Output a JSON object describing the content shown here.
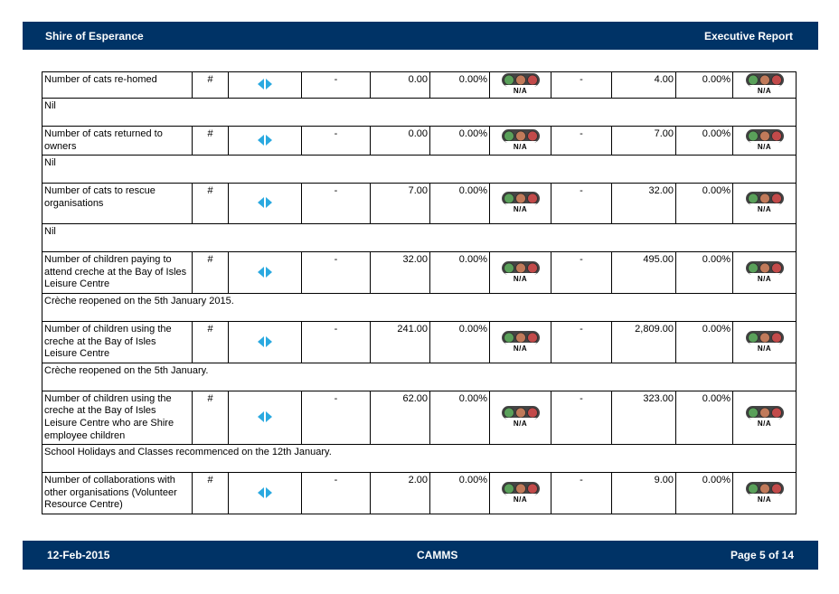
{
  "header": {
    "org": "Shire of Esperance",
    "report_title": "Executive Report"
  },
  "footer": {
    "date": "12-Feb-2015",
    "product": "CAMMS",
    "page": "Page 5 of 14"
  },
  "colors": {
    "bar": "#003366",
    "arrow": "#2aa9e0",
    "light_green": "#5aa05a",
    "light_amber": "#c07a5a",
    "light_red": "#c24a4a"
  },
  "rows": [
    {
      "name": "Number of cats re-homed",
      "unit": "#",
      "target1": "-",
      "actual1": "0.00",
      "variance1": "0.00%",
      "status1": "N/A",
      "target2": "-",
      "actual2": "4.00",
      "variance2": "0.00%",
      "status2": "N/A",
      "comment": "Nil"
    },
    {
      "name": "Number of cats returned to owners",
      "unit": "#",
      "target1": "-",
      "actual1": "0.00",
      "variance1": "0.00%",
      "status1": "N/A",
      "target2": "-",
      "actual2": "7.00",
      "variance2": "0.00%",
      "status2": "N/A",
      "comment": "Nil"
    },
    {
      "name": "Number of cats to rescue organisations",
      "unit": "#",
      "target1": "-",
      "actual1": "7.00",
      "variance1": "0.00%",
      "status1": "N/A",
      "target2": "-",
      "actual2": "32.00",
      "variance2": "0.00%",
      "status2": "N/A",
      "comment": "Nil"
    },
    {
      "name": "Number of children paying to attend creche at the Bay of Isles Leisure Centre",
      "unit": "#",
      "target1": "-",
      "actual1": "32.00",
      "variance1": "0.00%",
      "status1": "N/A",
      "target2": "-",
      "actual2": "495.00",
      "variance2": "0.00%",
      "status2": "N/A",
      "comment": "Crèche reopened on the 5th January 2015."
    },
    {
      "name": "Number of children using the creche at the Bay of Isles Leisure Centre",
      "unit": "#",
      "target1": "-",
      "actual1": "241.00",
      "variance1": "0.00%",
      "status1": "N/A",
      "target2": "-",
      "actual2": "2,809.00",
      "variance2": "0.00%",
      "status2": "N/A",
      "comment": "Crèche reopened on the 5th January."
    },
    {
      "name": "Number of children using the creche at the Bay of Isles Leisure Centre who are Shire employee children",
      "unit": "#",
      "target1": "-",
      "actual1": "62.00",
      "variance1": "0.00%",
      "status1": "N/A",
      "target2": "-",
      "actual2": "323.00",
      "variance2": "0.00%",
      "status2": "N/A",
      "comment": "School Holidays and Classes recommenced on the 12th January."
    },
    {
      "name": "Number of collaborations with other organisations (Volunteer Resource Centre)",
      "unit": "#",
      "target1": "-",
      "actual1": "2.00",
      "variance1": "0.00%",
      "status1": "N/A",
      "target2": "-",
      "actual2": "9.00",
      "variance2": "0.00%",
      "status2": "N/A"
    }
  ]
}
